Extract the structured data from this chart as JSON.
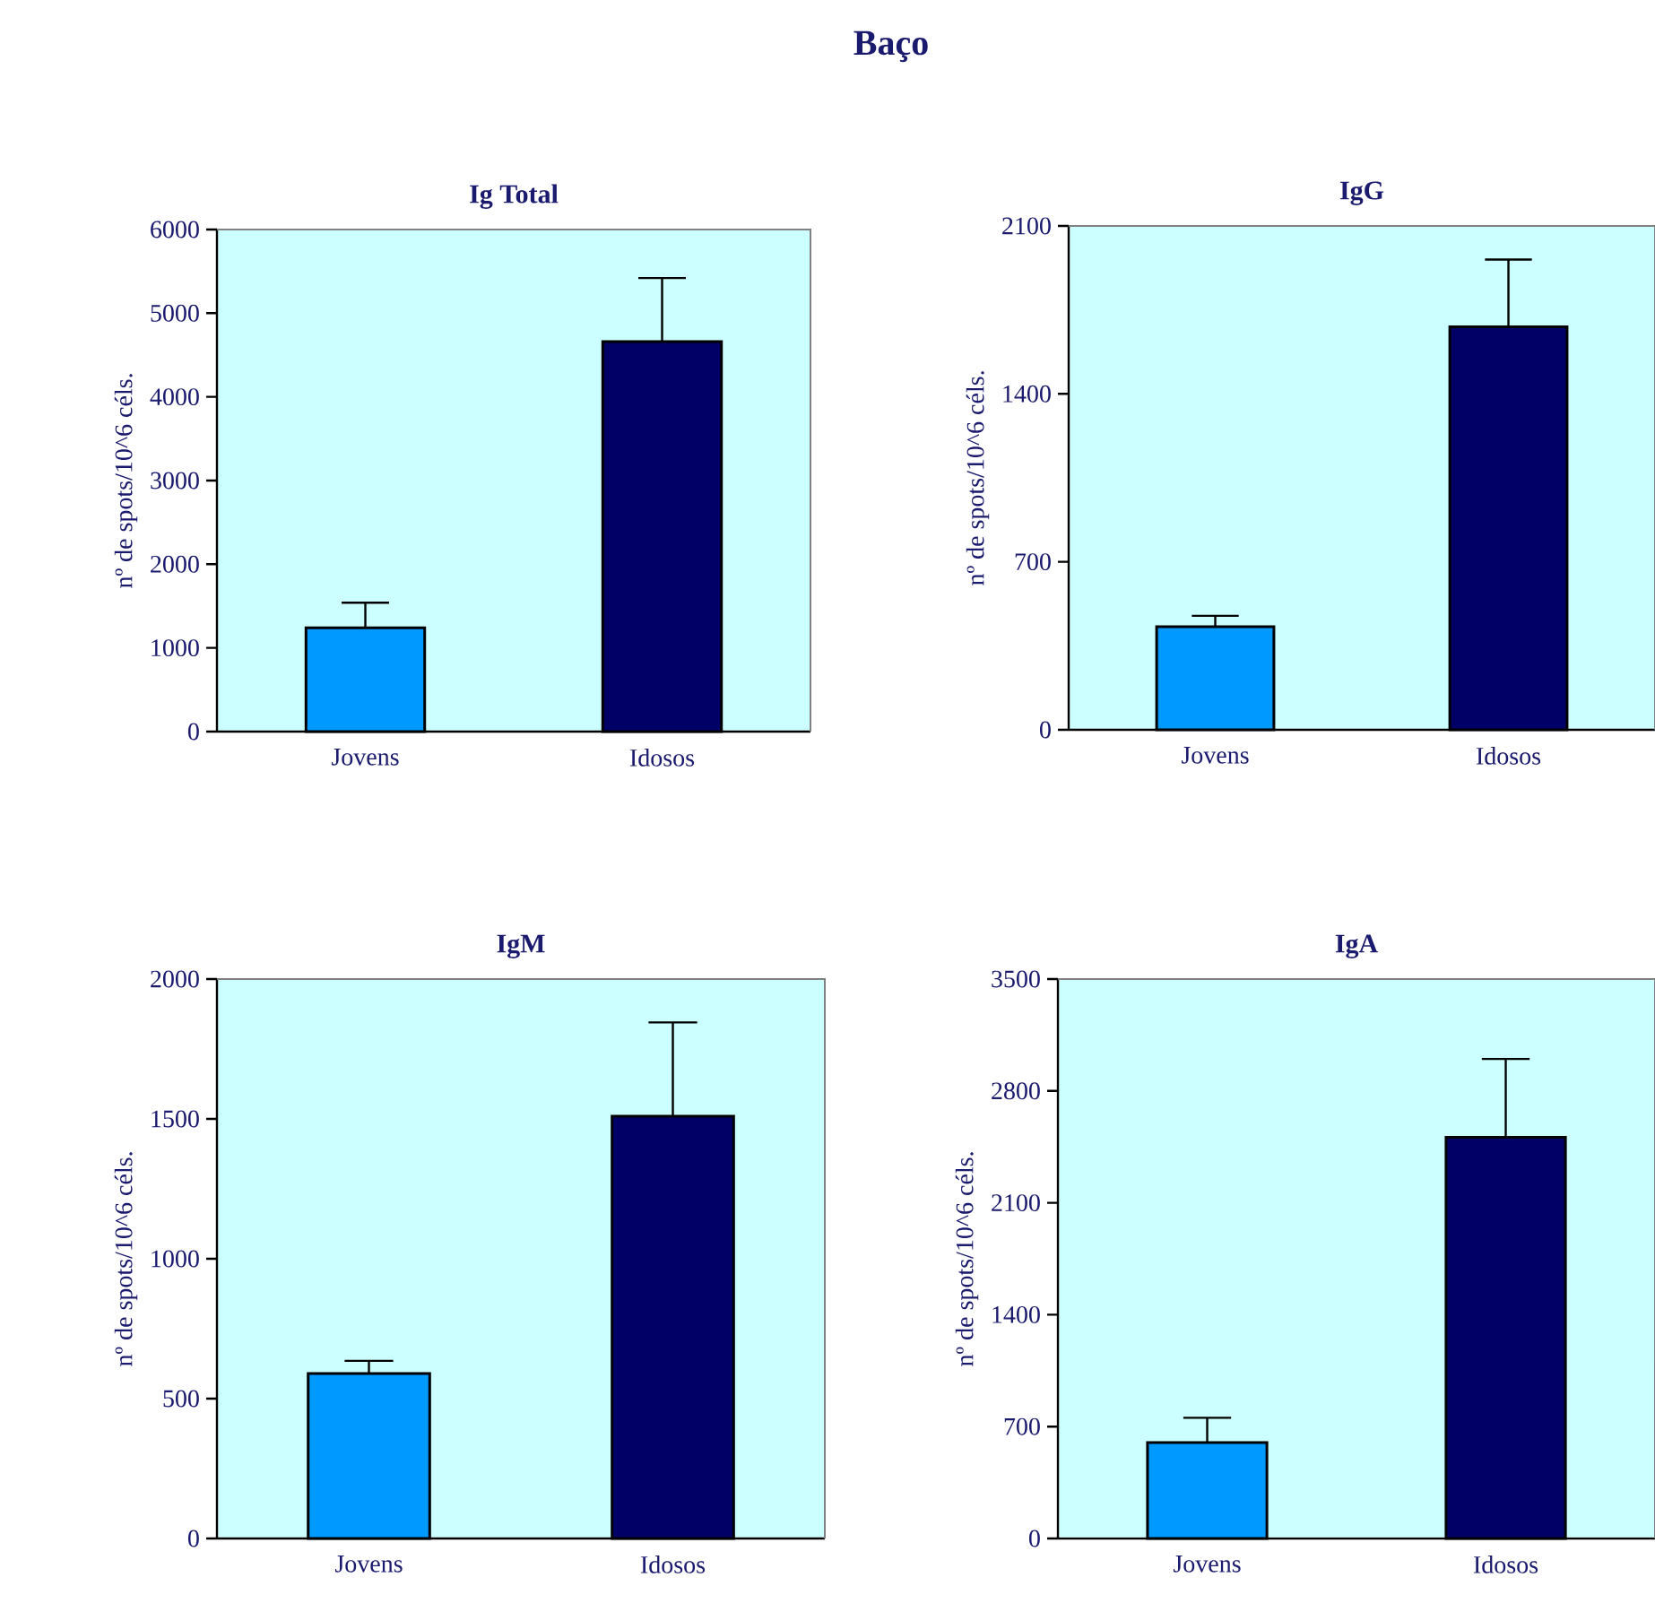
{
  "chart_data": [
    {
      "type": "bar",
      "title": "Ig Total",
      "annotations": [
        "Baço"
      ],
      "ylabel": "nº de spots/10^6 céls.",
      "categories": [
        "Jovens",
        "Idosos"
      ],
      "values": [
        1240,
        4660
      ],
      "colors": [
        "#0099ff",
        "#000066"
      ],
      "errors": [
        [
          1240,
          1540
        ],
        [
          4660,
          5420
        ]
      ],
      "ylim": [
        0,
        6000
      ],
      "yticks": [
        0,
        1000,
        2000,
        3000,
        4000,
        5000,
        6000
      ]
    },
    {
      "type": "bar",
      "title": "IgG",
      "ylabel": "nº de spots/10^6 céls.",
      "categories": [
        "Jovens",
        "Idosos"
      ],
      "values": [
        430,
        1680
      ],
      "colors": [
        "#0099ff",
        "#000066"
      ],
      "errors": [
        [
          430,
          475
        ],
        [
          1680,
          1960
        ]
      ],
      "ylim": [
        0,
        2100
      ],
      "yticks": [
        0,
        700,
        1400,
        2100
      ]
    },
    {
      "type": "bar",
      "title": "IgM",
      "ylabel": "nº de spots/10^6 céls.",
      "categories": [
        "Jovens",
        "Idosos"
      ],
      "values": [
        590,
        1510
      ],
      "colors": [
        "#0099ff",
        "#000066"
      ],
      "errors": [
        [
          590,
          635
        ],
        [
          1510,
          1845
        ]
      ],
      "ylim": [
        0,
        2000
      ],
      "yticks": [
        0,
        500,
        1000,
        1500,
        2000
      ]
    },
    {
      "type": "bar",
      "title": "IgA",
      "ylabel": "nº de spots/10^6 céls.",
      "categories": [
        "Jovens",
        "Idosos"
      ],
      "values": [
        600,
        2510
      ],
      "colors": [
        "#0099ff",
        "#000066"
      ],
      "errors": [
        [
          600,
          755
        ],
        [
          2510,
          3000
        ]
      ],
      "ylim": [
        0,
        3500
      ],
      "yticks": [
        0,
        700,
        1400,
        2100,
        2800,
        3500
      ]
    }
  ]
}
